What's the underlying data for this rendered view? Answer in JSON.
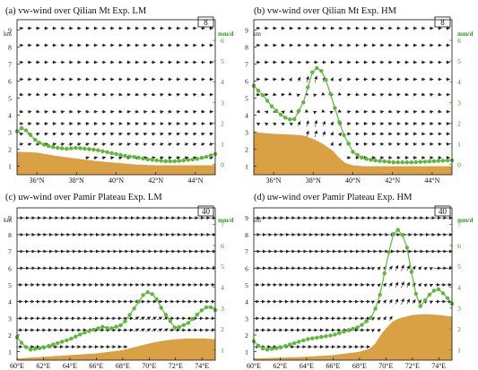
{
  "colors": {
    "terrain": "#D9A144",
    "precip": "#5DB83B",
    "vector": "#222222",
    "unit": "#3a8f2a"
  },
  "left_unit": "km",
  "right_unit": "mm/d",
  "chart_data": [
    {
      "type": "vector-cross-section",
      "title": "(a) vw-wind  over Qilian Mt Exp. LM",
      "ref_vector": "8",
      "x_ticks": [
        "36°N",
        "38°N",
        "40°N",
        "42°N",
        "44°N"
      ],
      "x_tick_values": [
        36,
        38,
        40,
        42,
        44
      ],
      "xlim": [
        35,
        45
      ],
      "y_ticks": [
        "1",
        "2",
        "3",
        "4",
        "5",
        "6",
        "7",
        "8",
        "9"
      ],
      "ylim": [
        0.5,
        9.6
      ],
      "precip_ticks": [
        "0",
        "1",
        "2",
        "3",
        "4",
        "5",
        "6"
      ],
      "precip_lim": [
        -0.5,
        7.0
      ],
      "levels": [
        1.5,
        2.3,
        2.9,
        3.5,
        4.2,
        5.2,
        6.1,
        7.1,
        8.1,
        9.1
      ],
      "terrain": {
        "x": [
          35,
          36,
          37,
          38,
          39,
          40,
          41,
          42,
          43,
          44,
          45
        ],
        "z": [
          1.85,
          1.8,
          1.6,
          1.45,
          1.3,
          1.2,
          1.1,
          1.05,
          1.05,
          1.05,
          1.05
        ]
      },
      "precip": {
        "x": [
          35,
          35.3,
          35.6,
          36,
          36.5,
          37,
          37.5,
          38,
          38.5,
          39,
          39.5,
          40,
          40.5,
          41,
          41.5,
          42,
          42.5,
          43,
          43.5,
          44,
          44.5,
          45
        ],
        "y": [
          1.6,
          1.8,
          1.5,
          1.1,
          0.9,
          0.8,
          0.75,
          0.8,
          0.75,
          0.7,
          0.6,
          0.5,
          0.4,
          0.35,
          0.25,
          0.2,
          0.15,
          0.15,
          0.2,
          0.25,
          0.35,
          0.5
        ]
      }
    },
    {
      "type": "vector-cross-section",
      "title": "(b) vw-wind  over Qilian Mt Exp. HM",
      "ref_vector": "8",
      "x_ticks": [
        "36°N",
        "38°N",
        "40°N",
        "42°N",
        "44°N"
      ],
      "x_tick_values": [
        36,
        38,
        40,
        42,
        44
      ],
      "xlim": [
        35,
        45
      ],
      "y_ticks": [
        "1",
        "2",
        "3",
        "4",
        "5",
        "6",
        "7",
        "8",
        "9"
      ],
      "ylim": [
        0.5,
        9.6
      ],
      "precip_ticks": [
        "0",
        "1",
        "2",
        "3",
        "4",
        "5",
        "6"
      ],
      "precip_lim": [
        -0.5,
        7.0
      ],
      "levels": [
        1.5,
        2.3,
        2.9,
        3.5,
        4.2,
        5.2,
        6.1,
        7.1,
        8.1,
        9.1
      ],
      "terrain": {
        "x": [
          35,
          36,
          37,
          37.5,
          38,
          38.5,
          39,
          39.3,
          39.6,
          40,
          40.5,
          41,
          42,
          43,
          44,
          45
        ],
        "z": [
          3.0,
          2.9,
          2.85,
          2.8,
          2.6,
          2.3,
          1.9,
          1.5,
          1.2,
          1.05,
          1.0,
          1.0,
          1.0,
          1.0,
          1.0,
          1.0
        ]
      },
      "precip": {
        "x": [
          35,
          35.5,
          36,
          36.5,
          37,
          37.5,
          38,
          38.3,
          38.6,
          39,
          39.5,
          40,
          40.5,
          41,
          42,
          43,
          44,
          45
        ],
        "y": [
          3.8,
          3.3,
          2.7,
          2.3,
          2.1,
          3.0,
          4.6,
          4.7,
          4.2,
          3.0,
          1.5,
          0.6,
          0.3,
          0.2,
          0.1,
          0.1,
          0.15,
          0.2
        ]
      }
    },
    {
      "type": "vector-cross-section",
      "title": "(c) uw-wind  over Pamir Plateau Exp. LM",
      "ref_vector": "40",
      "x_ticks": [
        "60°E",
        "62°E",
        "64°E",
        "66°E",
        "68°E",
        "70°E",
        "72°E",
        "74°E"
      ],
      "x_tick_values": [
        60,
        62,
        64,
        66,
        68,
        70,
        72,
        74
      ],
      "xlim": [
        60,
        75
      ],
      "y_ticks": [
        "1",
        "2",
        "3",
        "4",
        "5",
        "6",
        "7",
        "8",
        "9"
      ],
      "ylim": [
        0.5,
        9.6
      ],
      "precip_ticks": [
        "1",
        "2",
        "3",
        "4",
        "5",
        "6",
        "7"
      ],
      "precip_lim": [
        0.5,
        7.8
      ],
      "levels": [
        1.3,
        2.3,
        3.0,
        4.0,
        5.0,
        6.0,
        7.0,
        8.0,
        9.0
      ],
      "terrain": {
        "x": [
          60,
          62,
          64,
          66,
          67,
          68,
          69,
          70,
          71,
          72,
          73,
          74,
          75
        ],
        "z": [
          0.6,
          0.7,
          0.8,
          0.9,
          1.0,
          1.1,
          1.3,
          1.5,
          1.65,
          1.75,
          1.8,
          1.8,
          1.75
        ]
      },
      "precip": {
        "x": [
          60,
          60.5,
          61,
          62,
          63,
          64,
          65,
          66,
          66.5,
          67,
          68,
          69,
          69.5,
          70,
          70.5,
          71,
          72,
          73,
          74,
          74.5,
          75
        ],
        "y": [
          1.6,
          1.2,
          1.0,
          1.1,
          1.3,
          1.5,
          1.8,
          2.0,
          2.1,
          2.0,
          2.2,
          3.1,
          3.6,
          3.8,
          3.5,
          2.9,
          2.0,
          2.3,
          2.9,
          3.1,
          2.9
        ]
      }
    },
    {
      "type": "vector-cross-section",
      "title": "(d) uw-wind  over Pamir Plateau Exp. HM",
      "ref_vector": "40",
      "x_ticks": [
        "60°E",
        "62°E",
        "64°E",
        "66°E",
        "68°E",
        "70°E",
        "72°E",
        "74°E"
      ],
      "x_tick_values": [
        60,
        62,
        64,
        66,
        68,
        70,
        72,
        74
      ],
      "xlim": [
        60,
        75
      ],
      "y_ticks": [
        "1",
        "2",
        "3",
        "4",
        "5",
        "6",
        "7",
        "8",
        "9"
      ],
      "ylim": [
        0.5,
        9.6
      ],
      "precip_ticks": [
        "1",
        "2",
        "3",
        "4",
        "5",
        "6",
        "7"
      ],
      "precip_lim": [
        0.5,
        7.8
      ],
      "levels": [
        1.3,
        2.3,
        3.0,
        4.0,
        5.0,
        6.0,
        7.0,
        8.0,
        9.0
      ],
      "terrain": {
        "x": [
          60,
          64,
          66,
          67,
          68,
          68.8,
          69.2,
          69.6,
          70,
          70.5,
          71,
          72,
          73,
          74,
          75
        ],
        "z": [
          0.6,
          0.7,
          0.8,
          0.9,
          1.0,
          1.2,
          1.5,
          2.0,
          2.4,
          2.8,
          3.0,
          3.2,
          3.25,
          3.2,
          3.1
        ]
      },
      "precip": {
        "x": [
          60,
          60.5,
          61,
          62,
          63,
          64,
          65,
          66,
          67,
          68,
          69,
          69.5,
          70,
          70.5,
          71,
          71.5,
          72,
          72.5,
          73,
          73.5,
          74,
          74.5,
          75
        ],
        "y": [
          1.4,
          1.1,
          1.0,
          1.1,
          1.3,
          1.5,
          1.6,
          1.7,
          1.9,
          2.1,
          2.6,
          3.5,
          5.0,
          6.5,
          6.8,
          6.2,
          4.5,
          3.0,
          3.4,
          3.8,
          3.9,
          3.6,
          3.2
        ]
      }
    }
  ]
}
